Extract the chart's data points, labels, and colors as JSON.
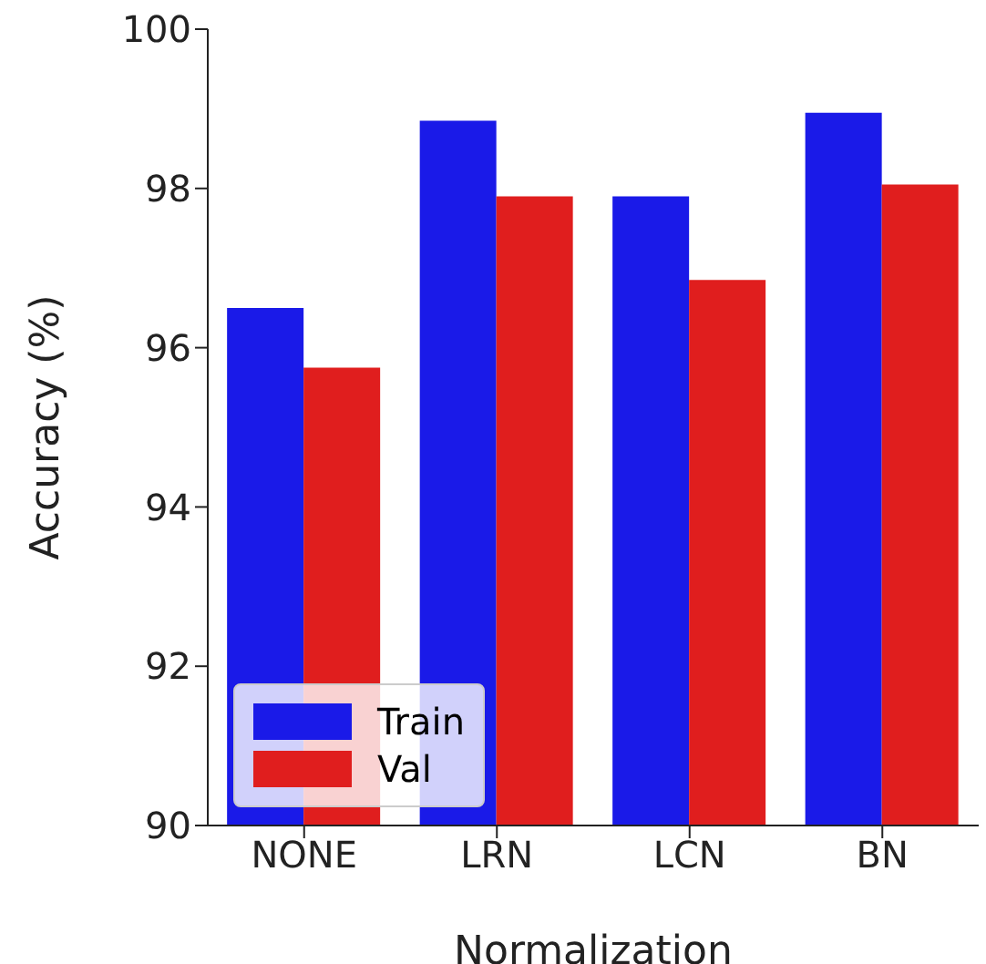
{
  "chart_data": {
    "type": "bar",
    "xlabel": "Normalization",
    "ylabel": "Accuracy (%)",
    "categories": [
      "NONE",
      "LRN",
      "LCN",
      "BN"
    ],
    "series": [
      {
        "name": "Train",
        "color": "#1a1ae8",
        "values": [
          96.5,
          98.85,
          97.9,
          98.95
        ]
      },
      {
        "name": "Val",
        "color": "#e01e1e",
        "values": [
          95.75,
          97.9,
          96.85,
          98.05
        ]
      }
    ],
    "ylim": [
      90,
      100
    ],
    "yticks": [
      90,
      92,
      94,
      96,
      98,
      100
    ],
    "grid": false,
    "legend": "bottom left"
  }
}
